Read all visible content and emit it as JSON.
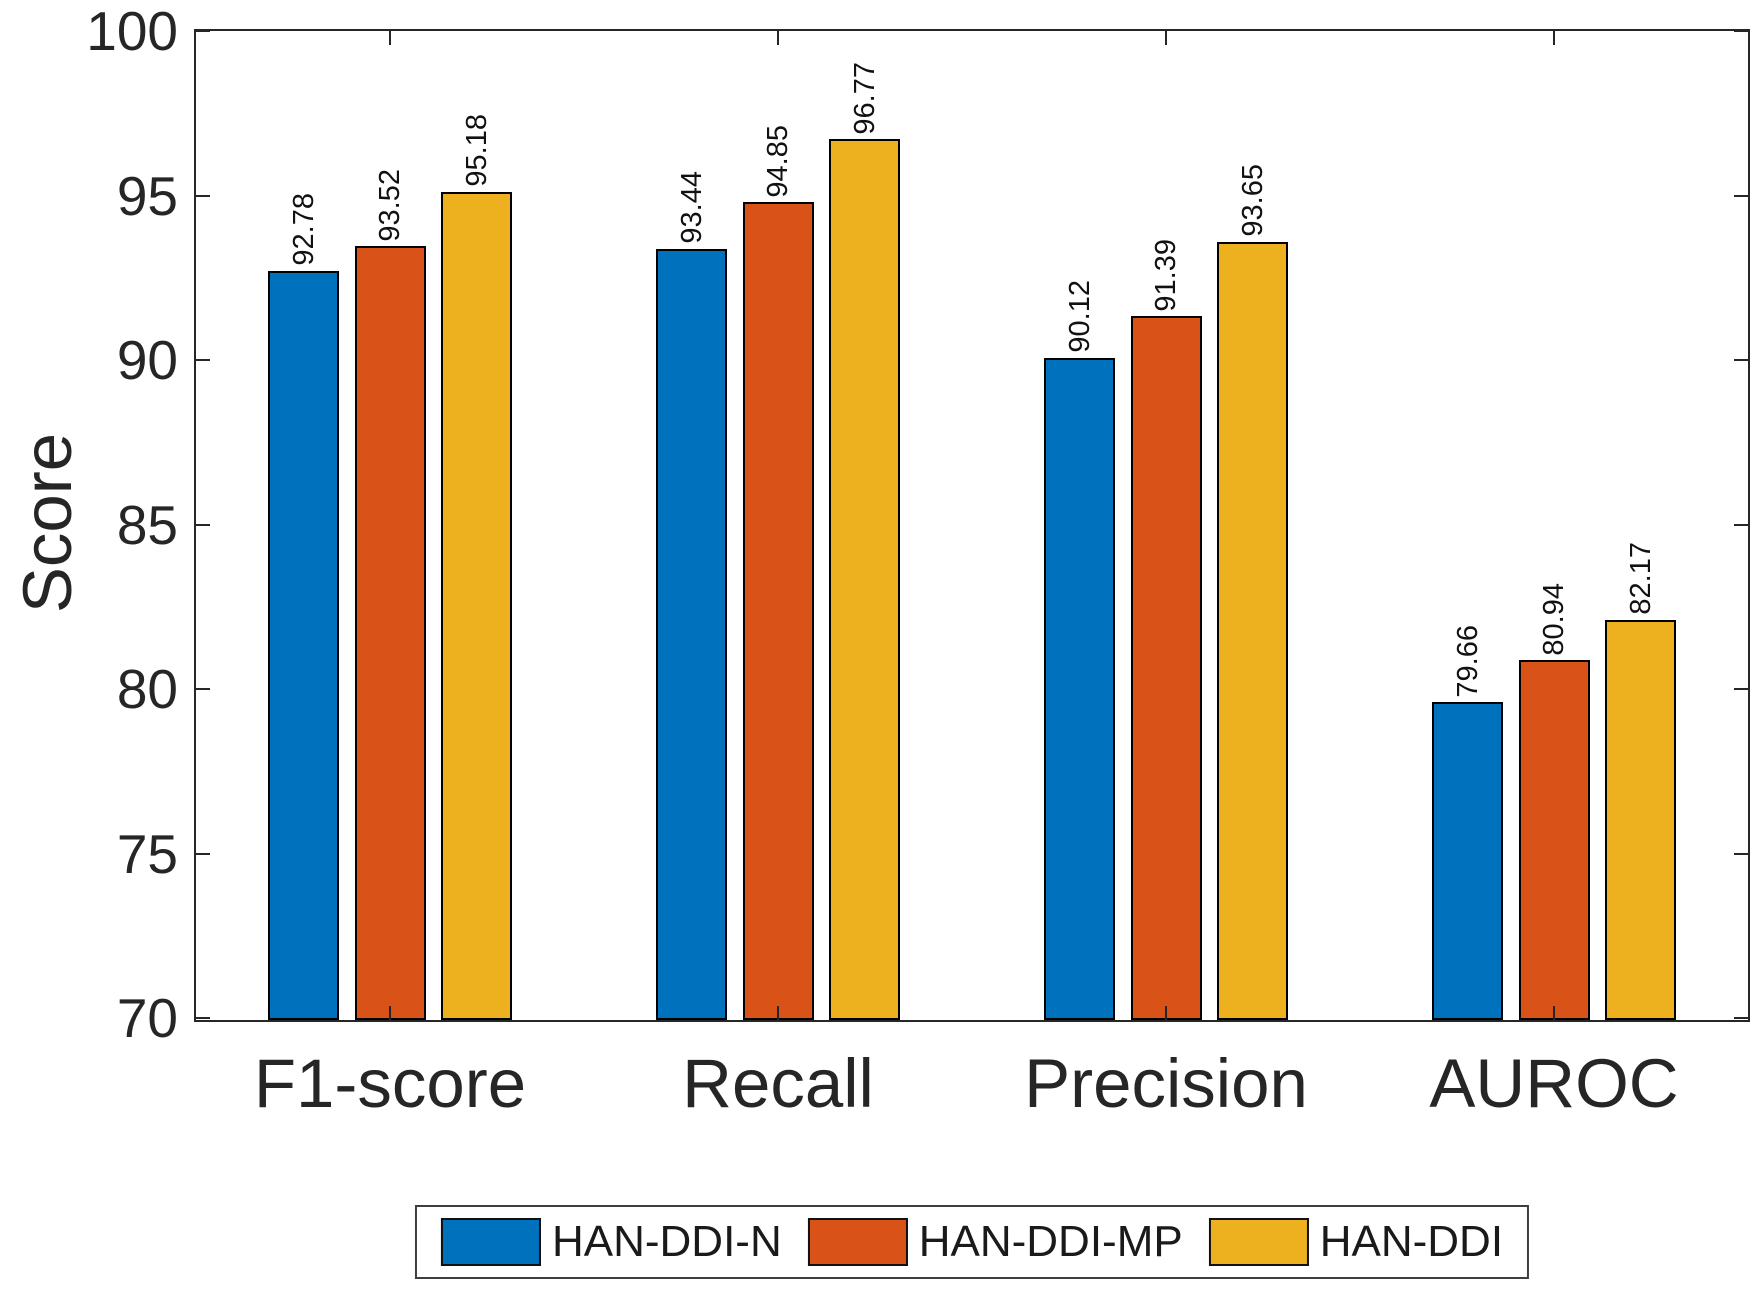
{
  "chart_data": {
    "type": "bar",
    "title": "",
    "xlabel": "",
    "ylabel": "Score",
    "categories": [
      "F1-score",
      "Recall",
      "Precision",
      "AUROC"
    ],
    "series": [
      {
        "name": "HAN-DDI-N",
        "color": "#0072BD",
        "values": [
          92.78,
          93.44,
          90.12,
          79.66
        ]
      },
      {
        "name": "HAN-DDI-MP",
        "color": "#D95319",
        "values": [
          93.52,
          94.85,
          91.39,
          80.94
        ]
      },
      {
        "name": "HAN-DDI",
        "color": "#EDB120",
        "values": [
          95.18,
          96.77,
          93.65,
          82.17
        ]
      }
    ],
    "ylim": [
      70,
      100
    ],
    "yticks": [
      70,
      75,
      80,
      85,
      90,
      95,
      100
    ],
    "bar_value_labels_rotation_deg": 90,
    "value_label_decimals": 2,
    "grid": false,
    "box": true,
    "tick_direction": "in",
    "legend_position": "below-outside",
    "axis_color": "#262626",
    "bar_edge_color": "#000000",
    "background_color": "#ffffff"
  }
}
